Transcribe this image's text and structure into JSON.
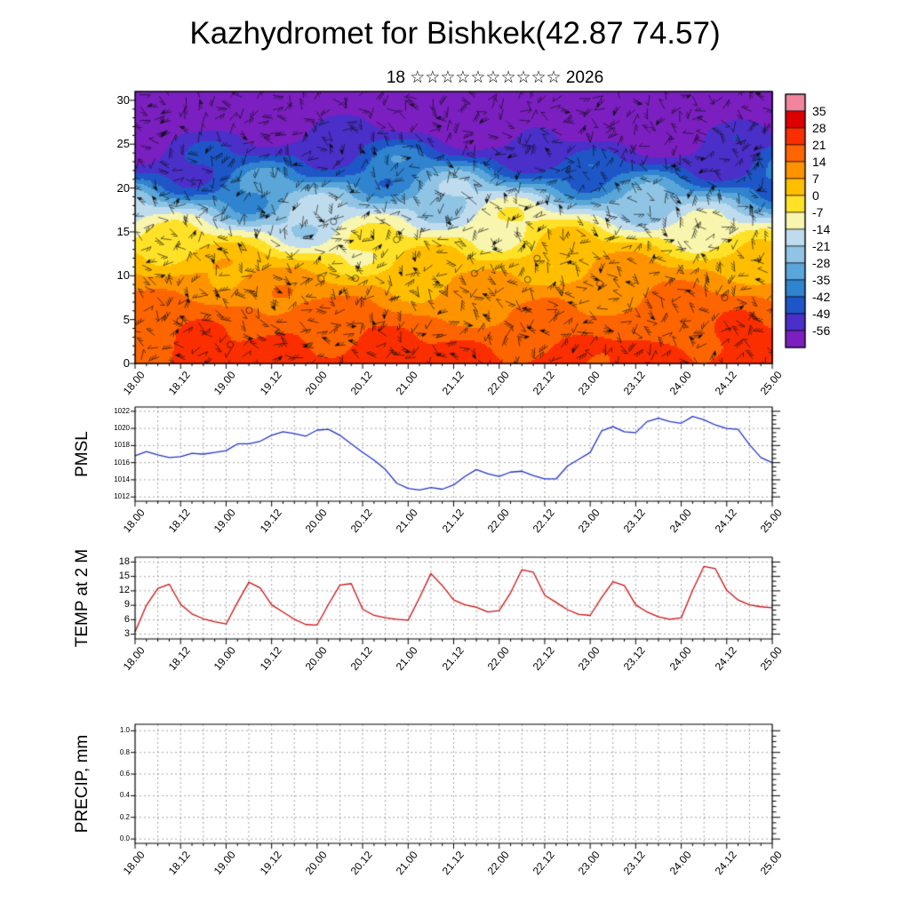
{
  "title": "Kazhydromet for Bishkek(42.87 74.57)",
  "subtitle": "18 ☆☆☆☆☆☆☆☆☆☆ 2026",
  "x_axis": {
    "tick_labels": [
      "18.00",
      "18.12",
      "19.00",
      "19.12",
      "20.00",
      "20.12",
      "21.00",
      "21.12",
      "22.00",
      "22.12",
      "23.00",
      "23.12",
      "24.00",
      "24.12",
      "25.00"
    ],
    "total_hours": 168,
    "label_step_hours": 12,
    "grid_step_hours": 6,
    "data_step_hours": 3
  },
  "chart_data": [
    {
      "type": "heatmap",
      "name": "temperature-wind-cross-section",
      "ylabel": "",
      "ylim": [
        0,
        31
      ],
      "y_tick_labels": [
        "30",
        "25",
        "20",
        "15",
        "10",
        "5",
        "0"
      ],
      "overlay": "wind-barbs",
      "profile_levels": [
        0,
        2,
        5,
        8,
        10,
        12,
        13.5,
        15,
        16.5,
        18,
        20,
        22,
        24,
        26,
        31
      ],
      "profile_temps": [
        24,
        21,
        17,
        11,
        7,
        2,
        -3,
        -9,
        -15,
        -22,
        -32,
        -43,
        -51,
        -57,
        -65
      ],
      "colorbar": {
        "tick_labels": [
          "35",
          "28",
          "21",
          "14",
          "7",
          "0",
          "-7",
          "-14",
          "-21",
          "-28",
          "-35",
          "-42",
          "-49",
          "-56"
        ],
        "colors": [
          "#f1859c",
          "#de0000",
          "#fb2e00",
          "#fd6500",
          "#fe9300",
          "#ffbf00",
          "#ffe228",
          "#f8f5ae",
          "#bfdcee",
          "#90c4e4",
          "#5ba6d9",
          "#2f83cf",
          "#1e56c7",
          "#4b2fc9",
          "#7b1fc0"
        ]
      }
    },
    {
      "type": "line",
      "ylabel": "PMSL",
      "line_color": "#2233cc",
      "y_tick_labels": [
        "1022",
        "1020",
        "1018",
        "1016",
        "1014",
        "1012"
      ],
      "ylim": [
        1011.5,
        1022.5
      ],
      "minor_step": 0.5,
      "values": [
        1016.8,
        1017.3,
        1016.9,
        1016.6,
        1016.7,
        1017.1,
        1017.0,
        1017.2,
        1017.4,
        1018.2,
        1018.2,
        1018.5,
        1019.2,
        1019.6,
        1019.4,
        1019.1,
        1019.8,
        1019.9,
        1019.2,
        1018.2,
        1017.2,
        1016.3,
        1015.2,
        1013.6,
        1013.0,
        1012.8,
        1013.1,
        1012.9,
        1013.4,
        1014.4,
        1015.2,
        1014.7,
        1014.4,
        1014.9,
        1015.0,
        1014.5,
        1014.1,
        1014.1,
        1015.6,
        1016.4,
        1017.2,
        1019.7,
        1020.2,
        1019.6,
        1019.5,
        1020.8,
        1021.2,
        1020.8,
        1020.6,
        1021.4,
        1021.0,
        1020.4,
        1020.0,
        1019.9,
        1018.1,
        1016.6,
        1016.0
      ]
    },
    {
      "type": "line",
      "ylabel": "TEMP at 2 M",
      "line_color": "#cc1111",
      "y_tick_labels": [
        "18",
        "15",
        "12",
        "9",
        "6",
        "3"
      ],
      "ylim": [
        2,
        19
      ],
      "minor_step": 1,
      "values": [
        3.5,
        9.0,
        12.5,
        13.4,
        9.2,
        7.2,
        6.2,
        5.6,
        5.1,
        9.6,
        13.8,
        12.6,
        9.1,
        7.6,
        6.1,
        5.0,
        4.9,
        9.2,
        13.2,
        13.5,
        8.2,
        6.9,
        6.4,
        6.1,
        5.9,
        10.6,
        15.6,
        13.1,
        10.1,
        9.1,
        8.6,
        7.6,
        7.9,
        11.6,
        16.4,
        15.9,
        11.1,
        9.6,
        8.1,
        7.1,
        6.9,
        10.6,
        13.9,
        13.1,
        9.1,
        7.6,
        6.6,
        6.1,
        6.4,
        12.1,
        17.1,
        16.6,
        12.1,
        10.1,
        9.1,
        8.7,
        8.5
      ]
    },
    {
      "type": "line",
      "ylabel": "PRECIP, mm",
      "line_color": "#008800",
      "y_tick_labels": [
        "1.0",
        "0.8",
        "0.6",
        "0.4",
        "0.2",
        "0.0"
      ],
      "ylim": [
        -0.04,
        1.06
      ],
      "minor_step": 0.05,
      "values": []
    }
  ]
}
